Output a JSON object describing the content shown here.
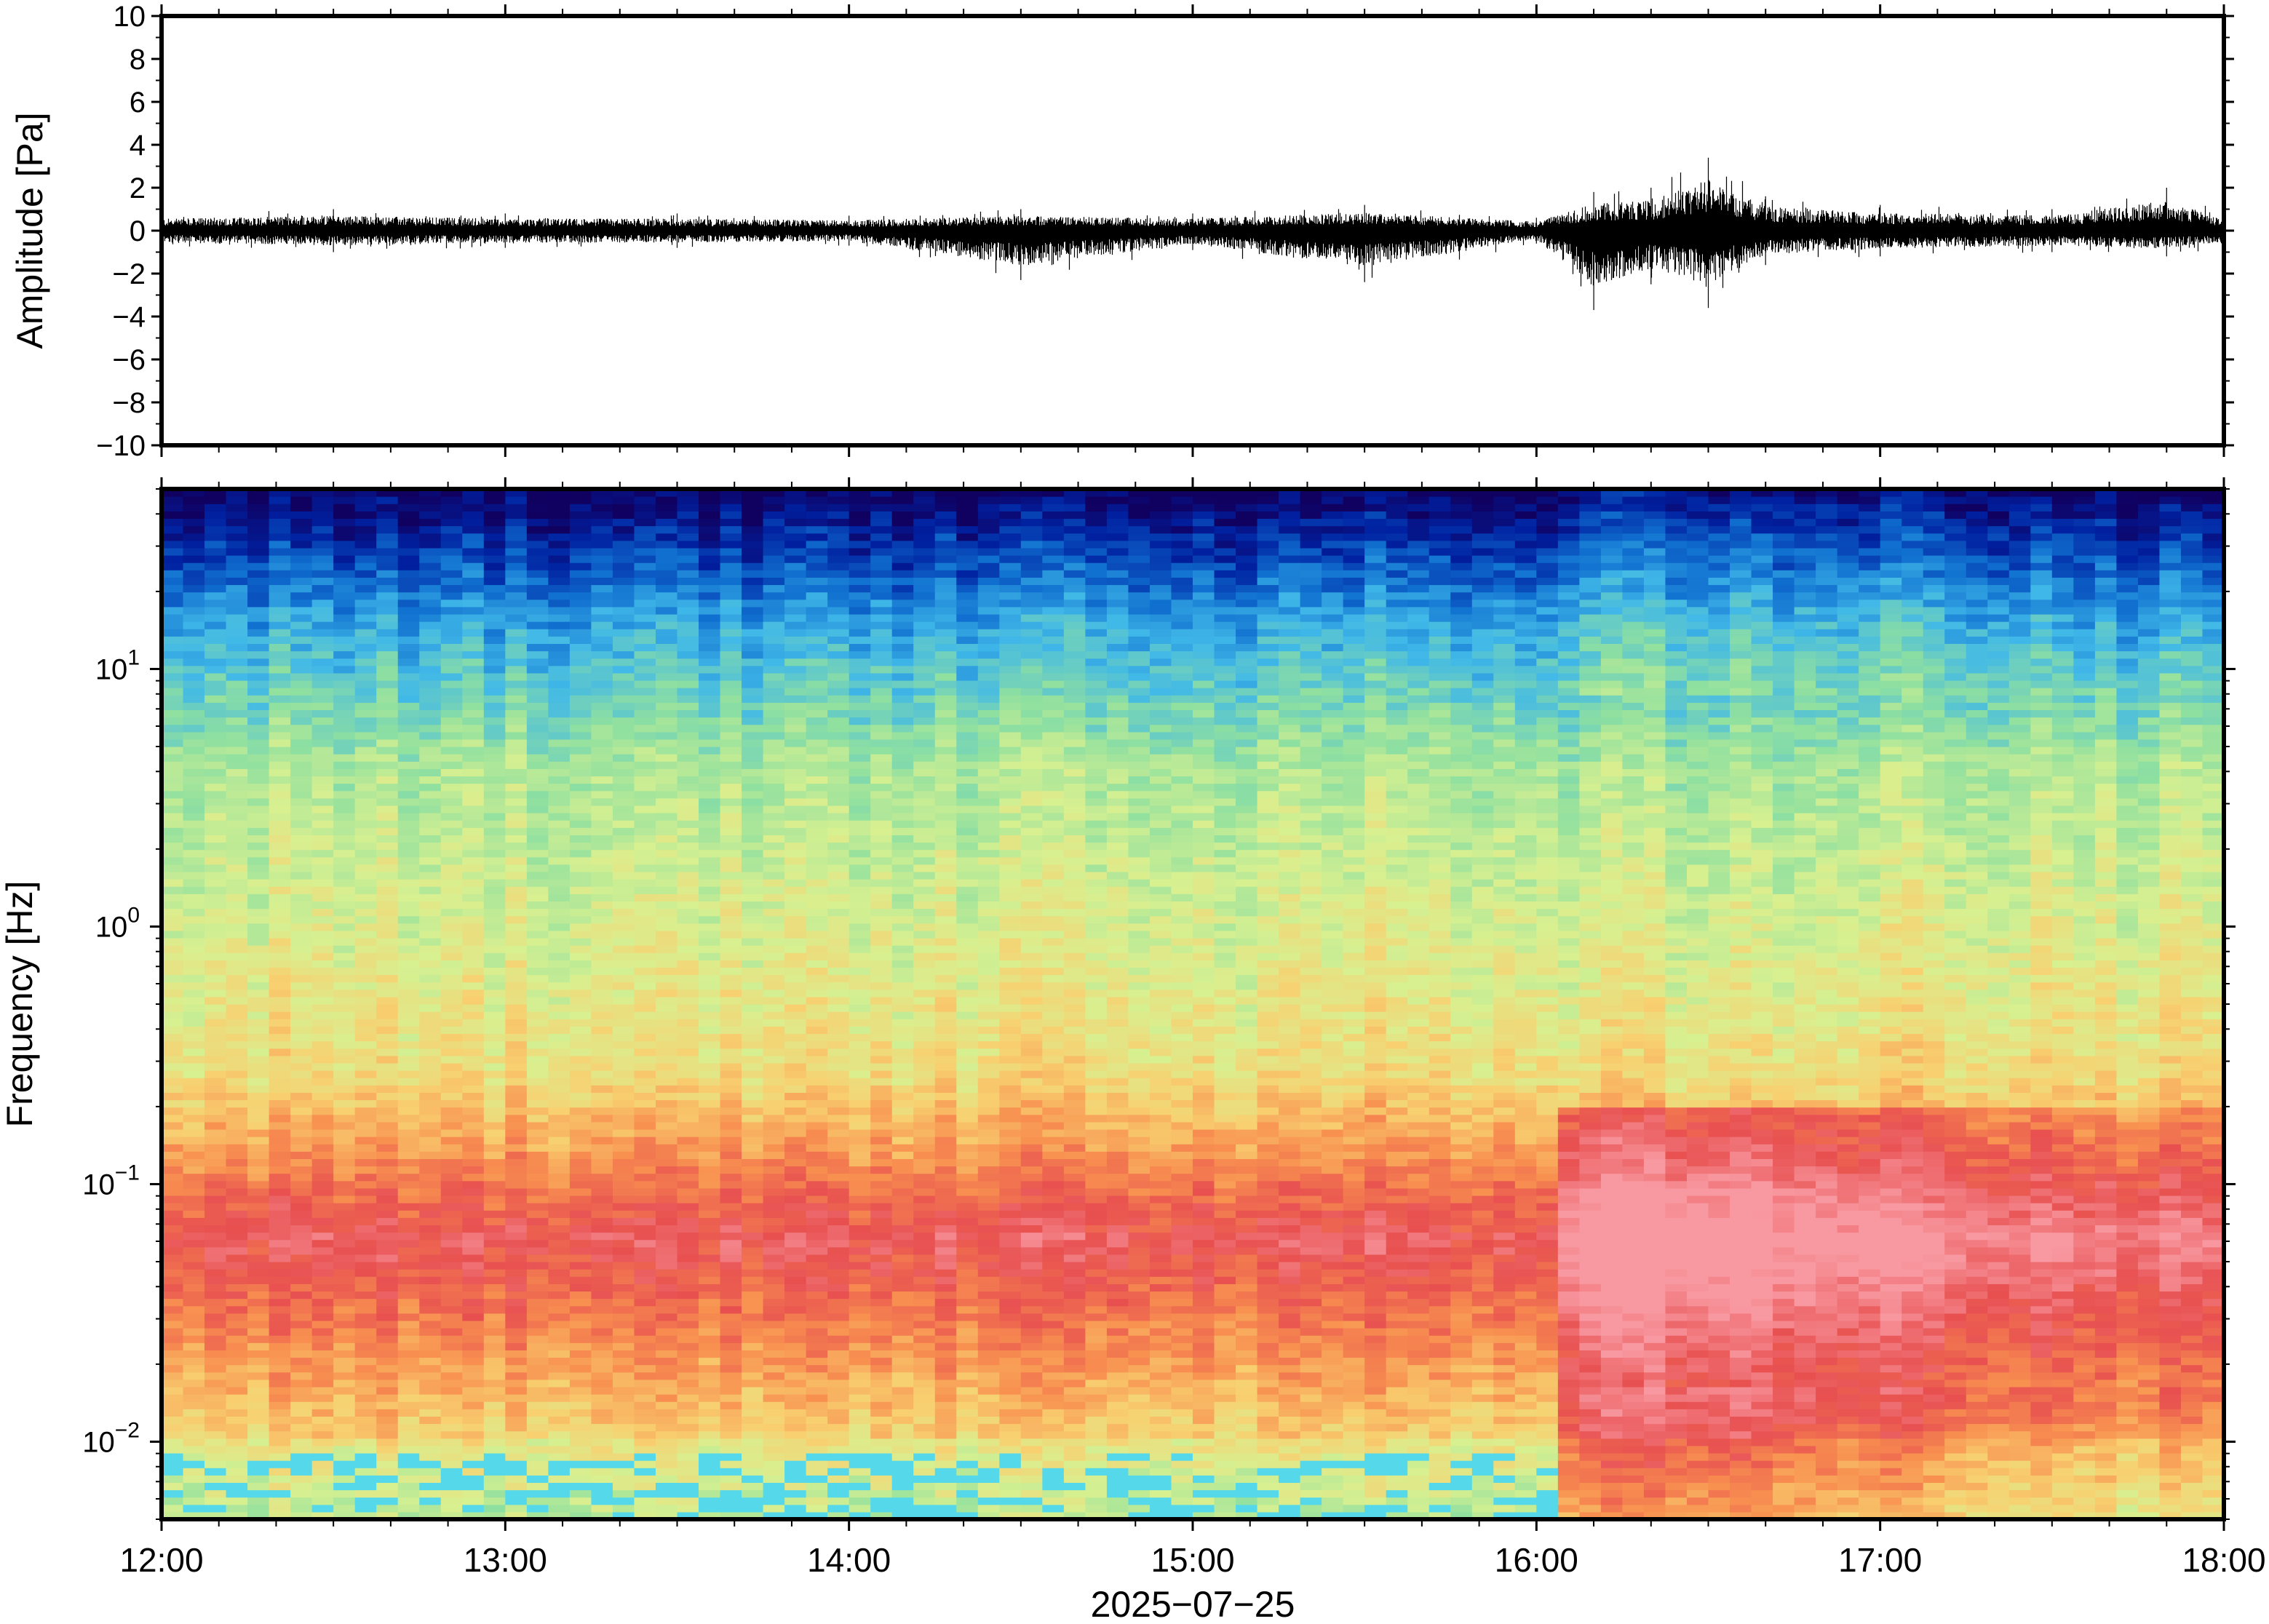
{
  "chart_data": [
    {
      "type": "line",
      "panel": "waveform",
      "ylabel": "Amplitude [Pa]",
      "xlim": [
        "12:00",
        "18:00"
      ],
      "ylim": [
        -10,
        10
      ],
      "yticks": [
        "10",
        "8",
        "6",
        "4",
        "2",
        "0",
        "−2",
        "−4",
        "−6",
        "−8",
        "−10"
      ],
      "ytick_values": [
        10,
        8,
        6,
        4,
        2,
        0,
        -2,
        -4,
        -6,
        -8,
        -10
      ],
      "series": [
        {
          "color": "#000000",
          "x": [
            "12:00",
            "12:30",
            "13:00",
            "13:30",
            "14:00",
            "14:30",
            "15:00",
            "15:30",
            "16:00",
            "16:10",
            "16:20",
            "16:30",
            "16:40",
            "17:00",
            "17:30",
            "17:50",
            "18:00"
          ],
          "envelope_max": [
            0.8,
            1.0,
            0.8,
            0.8,
            0.7,
            1.0,
            0.8,
            1.2,
            0.6,
            1.8,
            2.0,
            3.4,
            1.6,
            1.2,
            1.0,
            2.0,
            0.8
          ],
          "envelope_min": [
            -0.8,
            -1.0,
            -0.8,
            -0.8,
            -0.7,
            -2.3,
            -0.9,
            -2.4,
            -0.6,
            -3.7,
            -2.5,
            -3.6,
            -1.6,
            -1.2,
            -1.0,
            -1.2,
            -0.8
          ]
        }
      ]
    },
    {
      "type": "heatmap",
      "panel": "spectrogram",
      "ylabel": "Frequency [Hz]",
      "xlabel": "2025−07−25",
      "xticks": [
        "12:00",
        "13:00",
        "14:00",
        "15:00",
        "16:00",
        "17:00",
        "18:00"
      ],
      "yscale": "log",
      "ylim": [
        0.005,
        50
      ],
      "yticks": [
        {
          "base": "10",
          "exp": "−2",
          "value": 0.01
        },
        {
          "base": "10",
          "exp": "−1",
          "value": 0.1
        },
        {
          "base": "10",
          "exp": "0",
          "value": 1
        },
        {
          "base": "10",
          "exp": "1",
          "value": 10
        }
      ],
      "colormap": [
        "#3fd9f0",
        "#8fe0a0",
        "#d8f090",
        "#f8d070",
        "#f89050",
        "#e85050",
        "#f898a0",
        "#40b8e8",
        "#1070d0",
        "#0020a0",
        "#100060"
      ],
      "features": {
        "broadband_energy_increase_start": "16:05",
        "peak_energy_time": "16:25",
        "peak_energy_band_hz": [
          0.02,
          0.15
        ]
      }
    }
  ]
}
